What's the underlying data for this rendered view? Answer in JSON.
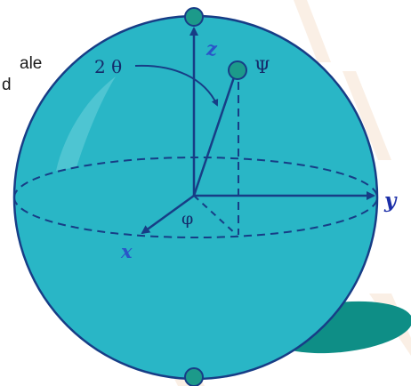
{
  "text_fragments": [
    "ale",
    "d"
  ],
  "labels": {
    "angle_theta": "2 θ",
    "state": "Ψ",
    "axis_z": "z",
    "axis_y": "y",
    "axis_x": "x",
    "angle_phi": "φ"
  },
  "colors": {
    "sphere_fill": "#29b6c6",
    "outline": "#173d86",
    "shadow": "#0e8e86",
    "watermark": "#f2dcc9",
    "label_z": "#2a55c8",
    "label_y": "#1c2fa8",
    "label_x": "#2a55c8",
    "label_dark": "#152a6a"
  }
}
